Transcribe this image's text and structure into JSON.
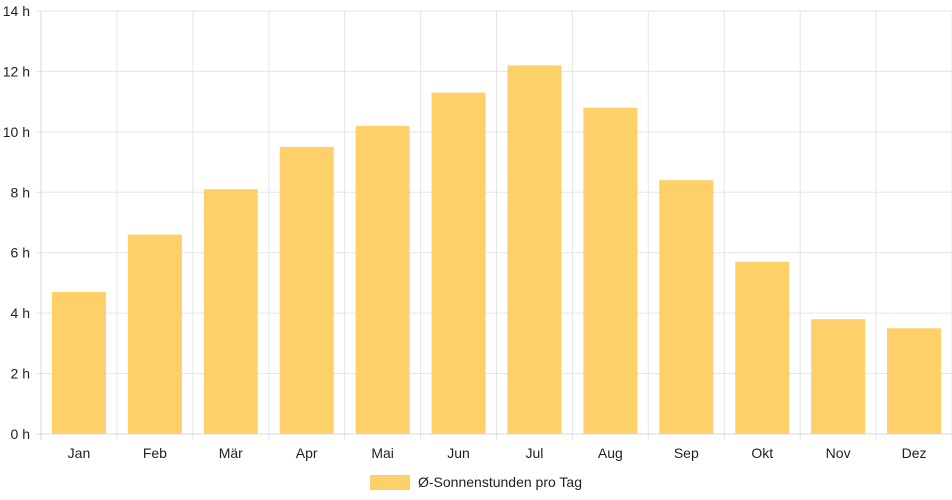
{
  "chart_data": {
    "type": "bar",
    "categories": [
      "Jan",
      "Feb",
      "Mär",
      "Apr",
      "Mai",
      "Jun",
      "Jul",
      "Aug",
      "Sep",
      "Okt",
      "Nov",
      "Dez"
    ],
    "series": [
      {
        "name": "Ø-Sonnenstunden pro Tag",
        "values": [
          4.7,
          6.6,
          8.1,
          9.5,
          10.2,
          11.3,
          12.2,
          10.8,
          8.4,
          5.7,
          3.8,
          3.5
        ],
        "color": "#fdd06a"
      }
    ],
    "y_ticks": [
      "0 h",
      "2 h",
      "4 h",
      "6 h",
      "8 h",
      "10 h",
      "12 h",
      "14 h"
    ],
    "ylim": [
      0,
      14
    ],
    "grid": true,
    "legend": "bottom-center",
    "colors": {
      "bar": "#fdd06a",
      "grid": "#e5e5e5",
      "axis": "#d9d9d9",
      "text": "#1f1f1f"
    }
  }
}
